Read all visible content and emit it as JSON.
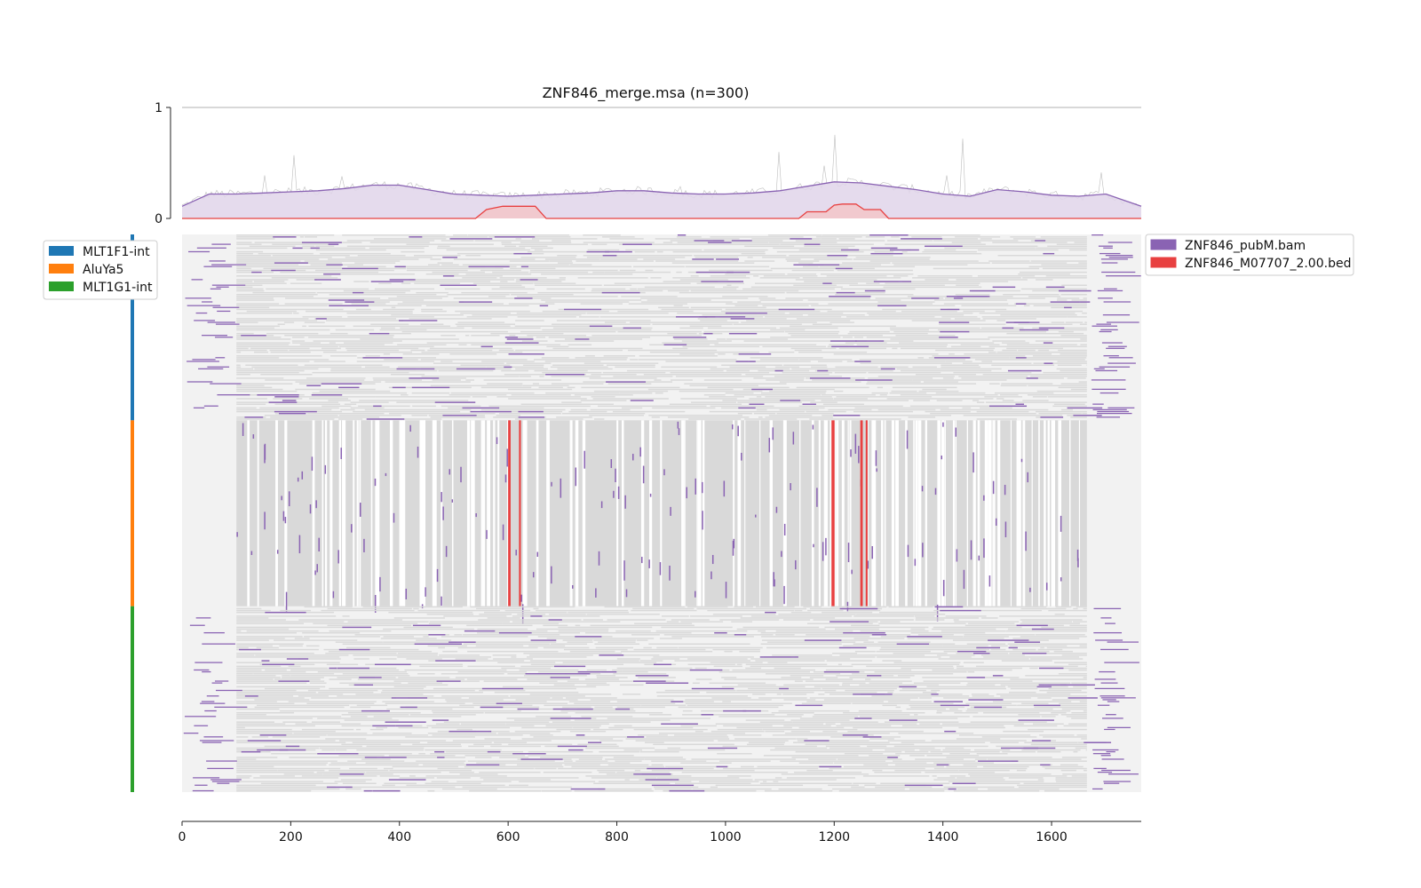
{
  "chart_data": {
    "type": "heatmap",
    "title": "ZNF846_merge.msa (n=300)",
    "n_sequences": 300,
    "alignment_length": 1765,
    "xlim": [
      0,
      1765
    ],
    "x_ticks": [
      0,
      200,
      400,
      600,
      800,
      1000,
      1200,
      1400,
      1600
    ],
    "profile": {
      "ylim": [
        0,
        1
      ],
      "y_ticks": [
        0,
        1
      ],
      "series": [
        {
          "name": "ZNF846_pubM.bam",
          "color": "#8a63b3",
          "fill": "#e0d5ea",
          "x": [
            0,
            50,
            100,
            150,
            200,
            250,
            300,
            350,
            400,
            450,
            500,
            550,
            600,
            650,
            700,
            750,
            800,
            850,
            900,
            950,
            1000,
            1050,
            1100,
            1150,
            1200,
            1250,
            1300,
            1350,
            1400,
            1450,
            1500,
            1550,
            1600,
            1650,
            1700,
            1765
          ],
          "y": [
            0.11,
            0.22,
            0.22,
            0.23,
            0.24,
            0.25,
            0.27,
            0.3,
            0.3,
            0.26,
            0.22,
            0.21,
            0.2,
            0.21,
            0.22,
            0.23,
            0.25,
            0.25,
            0.23,
            0.22,
            0.22,
            0.23,
            0.25,
            0.29,
            0.33,
            0.32,
            0.29,
            0.26,
            0.22,
            0.2,
            0.26,
            0.24,
            0.21,
            0.2,
            0.22,
            0.11
          ]
        },
        {
          "name": "ZNF846_M07707_2.00.bed",
          "color": "#e84040",
          "fill": "#f3c6c8",
          "x": [
            0,
            540,
            560,
            590,
            650,
            670,
            1135,
            1150,
            1185,
            1200,
            1215,
            1240,
            1255,
            1285,
            1300,
            1765
          ],
          "y": [
            0,
            0,
            0.08,
            0.11,
            0.11,
            0,
            0,
            0.06,
            0.06,
            0.12,
            0.13,
            0.13,
            0.08,
            0.08,
            0,
            0
          ]
        }
      ]
    },
    "rows_legend": {
      "position": "left",
      "groups": [
        {
          "name": "MLT1F1-int",
          "color": "#1f77b4",
          "rows": 100
        },
        {
          "name": "AluYa5",
          "color": "#ff7f0e",
          "rows": 100
        },
        {
          "name": "MLT1G1-int",
          "color": "#2ca02c",
          "rows": 100
        }
      ]
    },
    "signal_legend": {
      "position": "right",
      "entries": [
        {
          "name": "ZNF846_pubM.bam",
          "color": "#8a63b3"
        },
        {
          "name": "ZNF846_M07707_2.00.bed",
          "color": "#e84040"
        }
      ]
    },
    "colors": {
      "gap_background": "#f2f2f2",
      "aligned_base": "#d9d9d9",
      "no_data": "#ffffff",
      "signal": "#8a63b3",
      "motif": "#e84040"
    }
  }
}
